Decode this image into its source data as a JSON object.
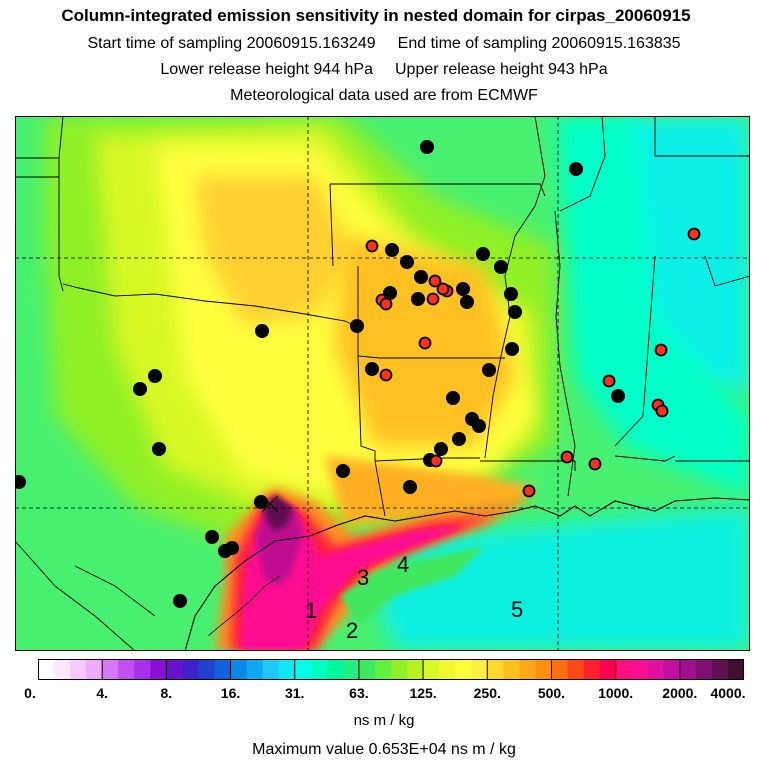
{
  "header": {
    "title": "Column-integrated emission sensitivity in nested domain for cirpas_20060915",
    "start_label": "Start time of sampling 20060915.163249",
    "end_label": "End time of sampling 20060915.163835",
    "lower_label": "Lower release height  944 hPa",
    "upper_label": "Upper release height  943 hPa",
    "met_label": "Meteorological data used are from ECMWF"
  },
  "colorbar": {
    "tick_labels": [
      "0.",
      "4.",
      "8.",
      "16.",
      "31.",
      "63.",
      "125.",
      "250.",
      "500.",
      "1000.",
      "2000.",
      "4000."
    ],
    "colors": [
      "#ffffff",
      "#fde8ff",
      "#f8caff",
      "#eeaaff",
      "#d878f8",
      "#c050f0",
      "#a830e8",
      "#8a10d8",
      "#6a10d0",
      "#4020c8",
      "#2040d0",
      "#1060e0",
      "#0a88e8",
      "#10a8f0",
      "#20c8f8",
      "#10e8f8",
      "#00ffe8",
      "#00ffc0",
      "#00f8a0",
      "#20f080",
      "#40e860",
      "#60f040",
      "#90f028",
      "#b8f020",
      "#d8f828",
      "#f0f830",
      "#ffff40",
      "#fff040",
      "#ffd830",
      "#ffc020",
      "#ffa818",
      "#ff9010",
      "#ff7010",
      "#ff4818",
      "#ff2030",
      "#ff0050",
      "#ff1080",
      "#f81090",
      "#e010a0",
      "#c010a0",
      "#a01090",
      "#801070",
      "#601050",
      "#401030"
    ],
    "units": "ns m / kg"
  },
  "footer": {
    "max_value": "Maximum value  0.653E+04 ns m / kg"
  },
  "map": {
    "domain_labels": [
      "1",
      "2",
      "3",
      "4",
      "5"
    ],
    "colors": {
      "background": "#48f070",
      "border": "#000000",
      "red_marker": "#ff3020",
      "black_marker": "#000000"
    }
  }
}
